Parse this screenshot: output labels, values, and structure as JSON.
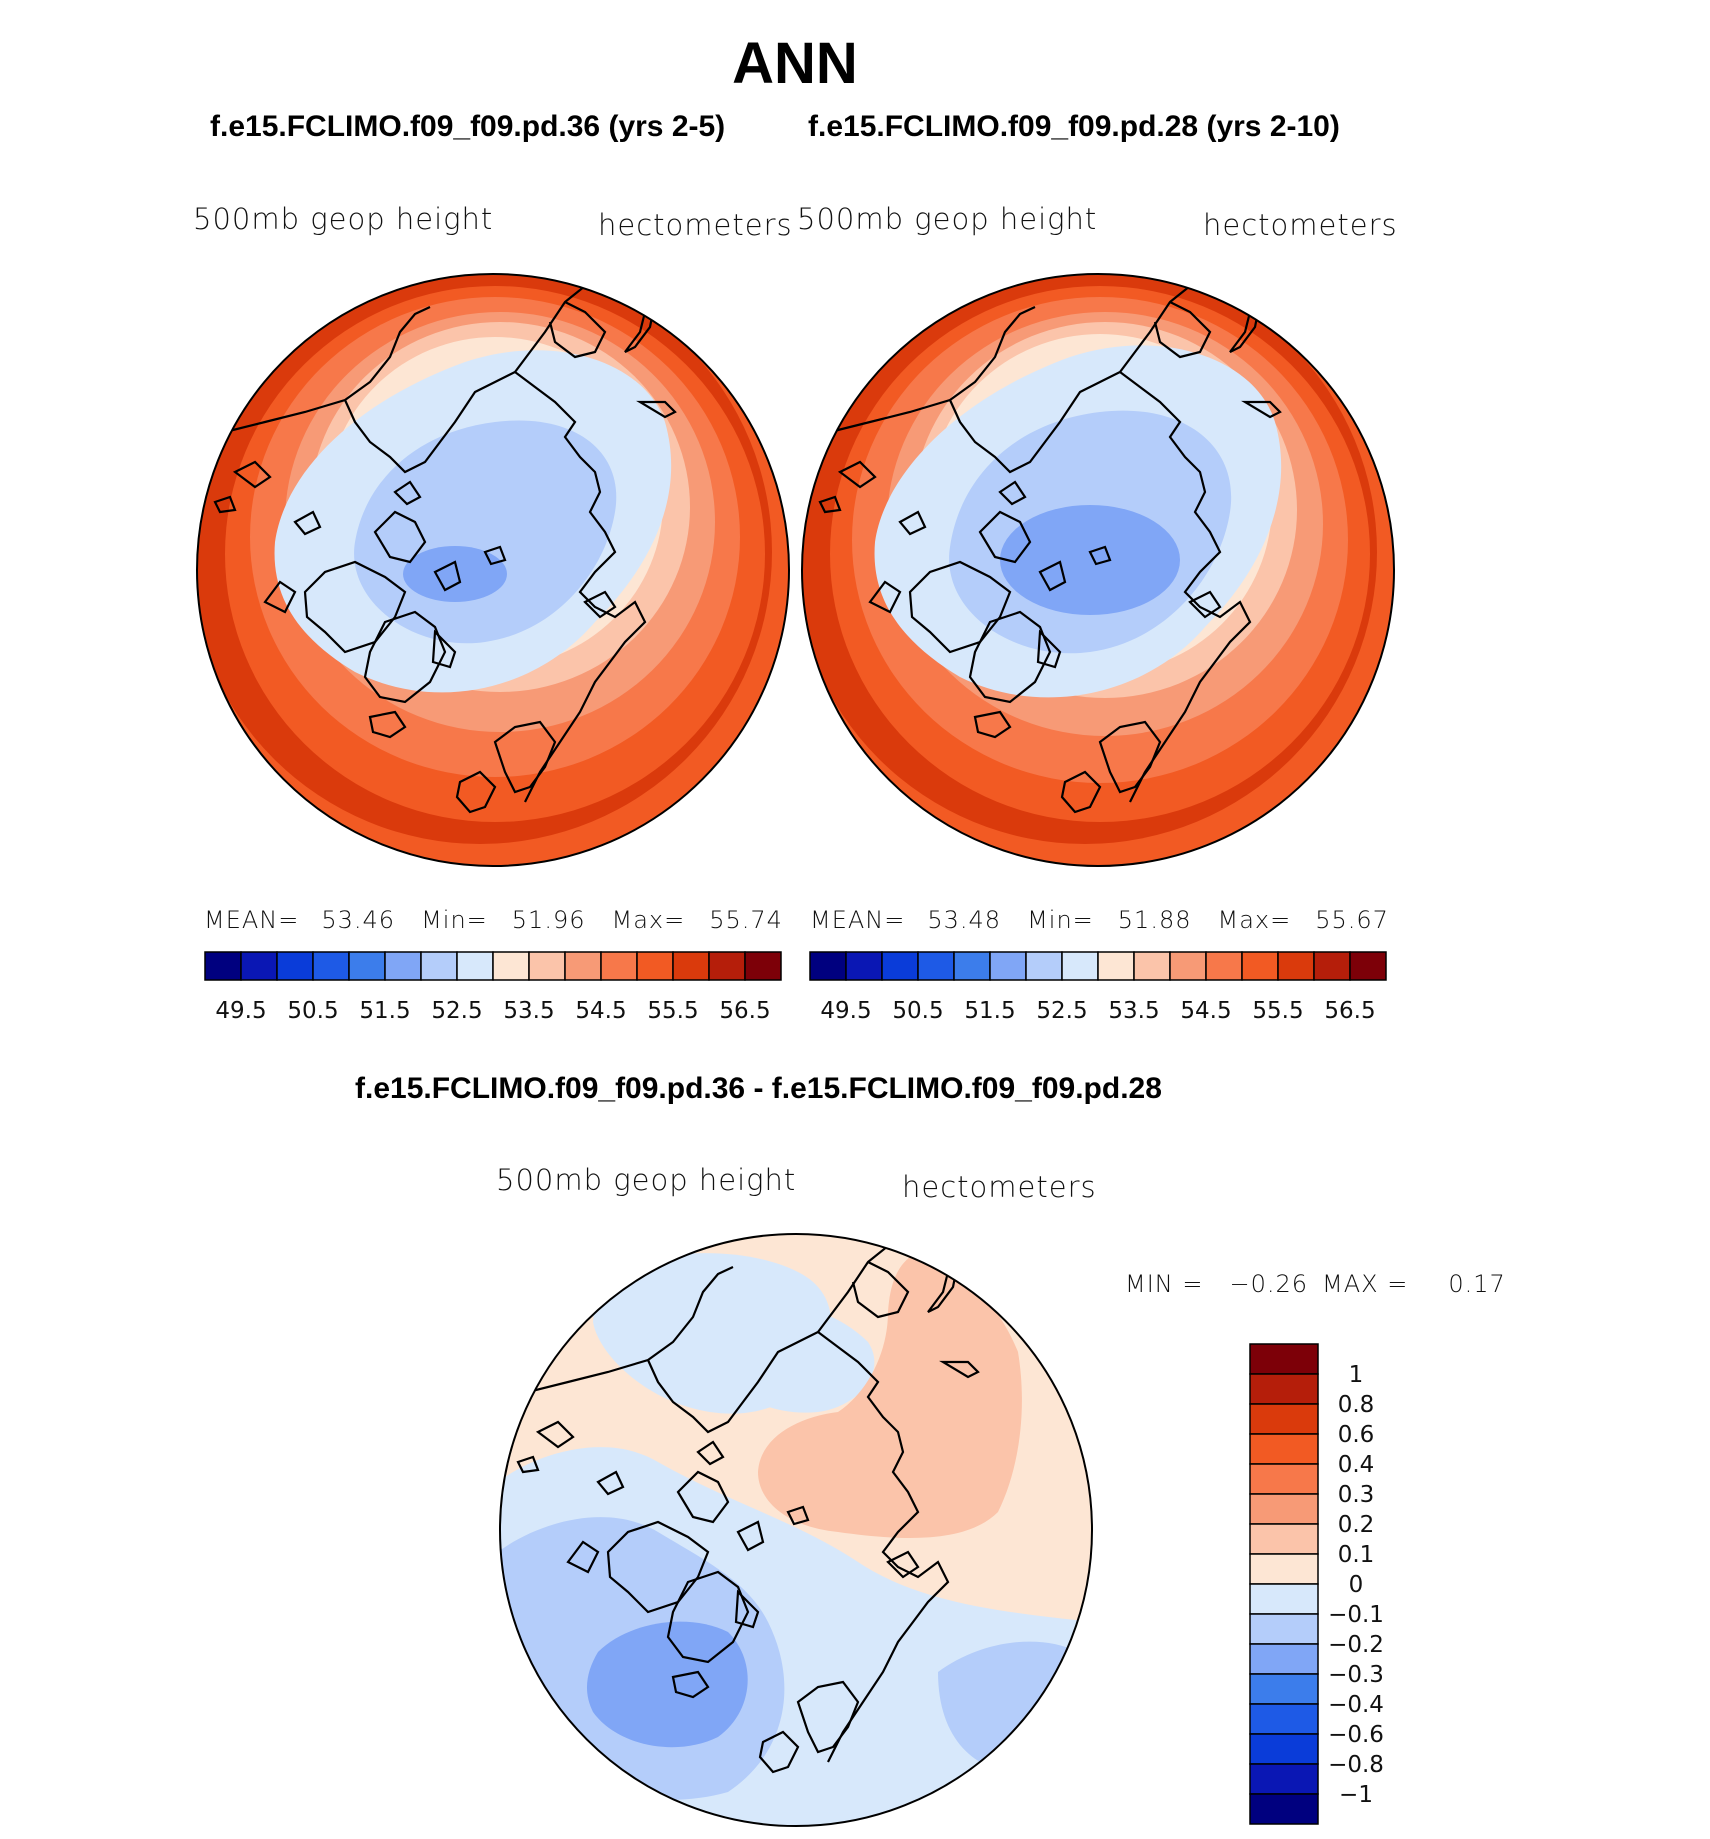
{
  "page_title": "ANN",
  "panels": [
    {
      "case_title": "f.e15.FCLIMO.f09_f09.pd.36 (yrs 2-5)",
      "variable": "500mb geop height",
      "units": "hectometers",
      "stats": {
        "mean_label": "MEAN=",
        "mean": "53.46",
        "min_label": "Min=",
        "min": "51.96",
        "max_label": "Max=",
        "max": "55.74"
      }
    },
    {
      "case_title": "f.e15.FCLIMO.f09_f09.pd.28 (yrs 2-10)",
      "variable": "500mb geop height",
      "units": "hectometers",
      "stats": {
        "mean_label": "MEAN=",
        "mean": "53.48",
        "min_label": "Min=",
        "min": "51.88",
        "max_label": "Max=",
        "max": "55.67"
      }
    }
  ],
  "diff_panel": {
    "title": "f.e15.FCLIMO.f09_f09.pd.36 - f.e15.FCLIMO.f09_f09.pd.28",
    "variable": "500mb geop height",
    "units": "hectometers",
    "min_label": "MIN =",
    "min": "−0.26",
    "max_label": "MAX =",
    "max": "0.17"
  },
  "chart_data": [
    {
      "type": "heatmap",
      "projection": "north polar stereographic",
      "title": "f.e15.FCLIMO.f09_f09.pd.36 (yrs 2-5)",
      "variable": "500mb geop height",
      "units": "hectometers",
      "mean": 53.46,
      "min": 51.96,
      "max": 55.74,
      "contour_levels": [
        49.5,
        50,
        50.5,
        51,
        51.5,
        52,
        52.5,
        53,
        53.5,
        54,
        54.5,
        55,
        55.5,
        56,
        56.5
      ],
      "colorbar_tick_labels": [
        "49.5",
        "50.5",
        "51.5",
        "52.5",
        "53.5",
        "54.5",
        "55.5",
        "56.5"
      ]
    },
    {
      "type": "heatmap",
      "projection": "north polar stereographic",
      "title": "f.e15.FCLIMO.f09_f09.pd.28 (yrs 2-10)",
      "variable": "500mb geop height",
      "units": "hectometers",
      "mean": 53.48,
      "min": 51.88,
      "max": 55.67,
      "contour_levels": [
        49.5,
        50,
        50.5,
        51,
        51.5,
        52,
        52.5,
        53,
        53.5,
        54,
        54.5,
        55,
        55.5,
        56,
        56.5
      ],
      "colorbar_tick_labels": [
        "49.5",
        "50.5",
        "51.5",
        "52.5",
        "53.5",
        "54.5",
        "55.5",
        "56.5"
      ]
    },
    {
      "type": "heatmap",
      "projection": "north polar stereographic",
      "title": "f.e15.FCLIMO.f09_f09.pd.36 - f.e15.FCLIMO.f09_f09.pd.28",
      "variable": "500mb geop height",
      "units": "hectometers",
      "min": -0.26,
      "max": 0.17,
      "contour_levels": [
        1,
        0.8,
        0.6,
        0.4,
        0.3,
        0.2,
        0.1,
        0,
        -0.1,
        -0.2,
        -0.3,
        -0.4,
        -0.6,
        -0.8,
        -1
      ],
      "colorbar_tick_labels": [
        "1",
        "0.8",
        "0.6",
        "0.4",
        "0.3",
        "0.2",
        "0.1",
        "0",
        "−0.1",
        "−0.2",
        "−0.3",
        "−0.4",
        "−0.6",
        "−0.8",
        "−1"
      ]
    }
  ],
  "colors": {
    "sequential": [
      "#00007f",
      "#0a17b4",
      "#0a3cd9",
      "#1e5ae6",
      "#3c7deb",
      "#80a6f6",
      "#b4cdfa",
      "#d7e8fb",
      "#fde6d4",
      "#fbc4aa",
      "#f79a76",
      "#f7784a",
      "#f25a23",
      "#da3a0c",
      "#b51e0a",
      "#7d0008"
    ],
    "diff": [
      "#00007f",
      "#0a17b4",
      "#0a3cd9",
      "#1e5ae6",
      "#3c7deb",
      "#80a6f6",
      "#b4cdfa",
      "#d7e8fb",
      "#fde6d4",
      "#fbc4aa",
      "#f79a76",
      "#f7784a",
      "#f25a23",
      "#da3a0c",
      "#b51e0a",
      "#7d0008"
    ]
  }
}
